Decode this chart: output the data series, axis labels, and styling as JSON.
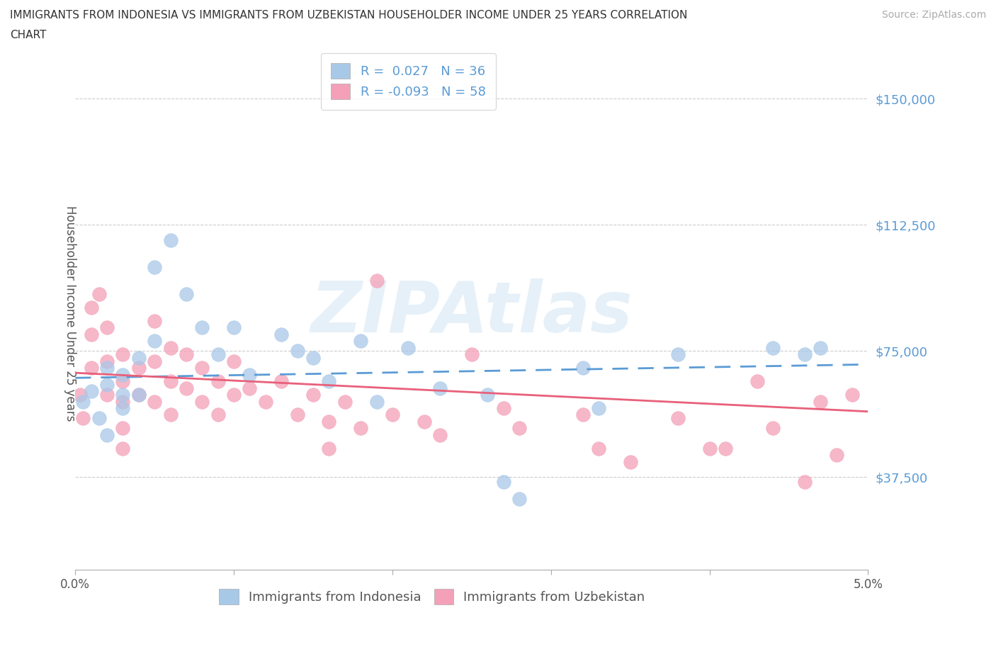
{
  "title_line1": "IMMIGRANTS FROM INDONESIA VS IMMIGRANTS FROM UZBEKISTAN HOUSEHOLDER INCOME UNDER 25 YEARS CORRELATION",
  "title_line2": "CHART",
  "source": "Source: ZipAtlas.com",
  "ylabel": "Householder Income Under 25 years",
  "xlim": [
    0.0,
    0.05
  ],
  "ylim": [
    10000,
    162500
  ],
  "yticks": [
    37500,
    75000,
    112500,
    150000
  ],
  "ytick_labels": [
    "$37,500",
    "$75,000",
    "$112,500",
    "$150,000"
  ],
  "color_indonesia": "#a8c8e8",
  "color_uzbekistan": "#f4a0b8",
  "trendline_color_indonesia": "#5b9bd5",
  "trendline_color_uzbekistan": "#e8607a",
  "R_indonesia": 0.027,
  "N_indonesia": 36,
  "R_uzbekistan": -0.093,
  "N_uzbekistan": 58,
  "background_color": "#ffffff",
  "indonesia_x": [
    0.0005,
    0.001,
    0.0015,
    0.002,
    0.002,
    0.002,
    0.003,
    0.003,
    0.003,
    0.004,
    0.004,
    0.005,
    0.005,
    0.006,
    0.007,
    0.008,
    0.009,
    0.01,
    0.011,
    0.013,
    0.014,
    0.015,
    0.016,
    0.018,
    0.019,
    0.021,
    0.023,
    0.026,
    0.027,
    0.028,
    0.032,
    0.033,
    0.038,
    0.044,
    0.046,
    0.047
  ],
  "indonesia_y": [
    60000,
    63000,
    55000,
    70000,
    65000,
    50000,
    68000,
    62000,
    58000,
    73000,
    62000,
    100000,
    78000,
    108000,
    92000,
    82000,
    74000,
    82000,
    68000,
    80000,
    75000,
    73000,
    66000,
    78000,
    60000,
    76000,
    64000,
    62000,
    36000,
    31000,
    70000,
    58000,
    74000,
    76000,
    74000,
    76000
  ],
  "uzbekistan_x": [
    0.0003,
    0.0005,
    0.001,
    0.001,
    0.001,
    0.0015,
    0.002,
    0.002,
    0.002,
    0.003,
    0.003,
    0.003,
    0.003,
    0.003,
    0.004,
    0.004,
    0.005,
    0.005,
    0.005,
    0.006,
    0.006,
    0.006,
    0.007,
    0.007,
    0.008,
    0.008,
    0.009,
    0.009,
    0.01,
    0.01,
    0.011,
    0.012,
    0.013,
    0.014,
    0.015,
    0.016,
    0.016,
    0.017,
    0.018,
    0.019,
    0.02,
    0.022,
    0.023,
    0.025,
    0.027,
    0.028,
    0.032,
    0.033,
    0.035,
    0.038,
    0.04,
    0.041,
    0.043,
    0.044,
    0.046,
    0.047,
    0.048,
    0.049
  ],
  "uzbekistan_y": [
    62000,
    55000,
    88000,
    80000,
    70000,
    92000,
    82000,
    72000,
    62000,
    74000,
    66000,
    60000,
    52000,
    46000,
    70000,
    62000,
    84000,
    72000,
    60000,
    76000,
    66000,
    56000,
    74000,
    64000,
    70000,
    60000,
    66000,
    56000,
    72000,
    62000,
    64000,
    60000,
    66000,
    56000,
    62000,
    54000,
    46000,
    60000,
    52000,
    96000,
    56000,
    54000,
    50000,
    74000,
    58000,
    52000,
    56000,
    46000,
    42000,
    55000,
    46000,
    46000,
    66000,
    52000,
    36000,
    60000,
    44000,
    62000
  ]
}
